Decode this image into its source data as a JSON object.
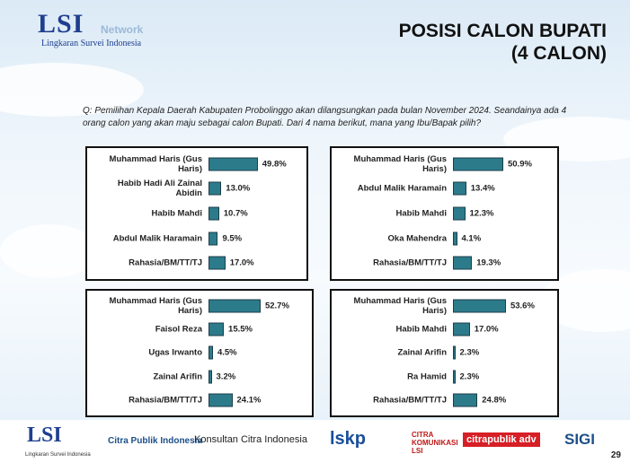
{
  "header": {
    "logo": "LSI",
    "network": "Network",
    "logo_subtitle": "Lingkaran Survei Indonesia",
    "title": "POSISI CALON BUPATI",
    "subtitle": "(4 CALON)"
  },
  "question": "Q:  Pemilihan Kepala Daerah Kabupaten Probolinggo akan dilangsungkan pada bulan November 2024. Seandainya ada 4 orang calon yang akan maju sebagai calon Bupati. Dari 4 nama berikut, mana yang Ibu/Bapak pilih?",
  "chart_data": [
    {
      "type": "bar",
      "orientation": "horizontal",
      "color": "#2c7b8b",
      "categories": [
        "Muhammad Haris (Gus Haris)",
        "Habib Hadi Ali Zainal Abidin",
        "Habib Mahdi",
        "Abdul Malik Haramain",
        "Rahasia/BM/TT/TJ"
      ],
      "values": [
        49.8,
        13.0,
        10.7,
        9.5,
        17.0
      ],
      "value_labels": [
        "49.8%",
        "13.0%",
        "10.7%",
        "9.5%",
        "17.0%"
      ]
    },
    {
      "type": "bar",
      "orientation": "horizontal",
      "color": "#2c7b8b",
      "categories": [
        "Muhammad Haris (Gus Haris)",
        "Abdul Malik Haramain",
        "Habib Mahdi",
        "Oka Mahendra",
        "Rahasia/BM/TT/TJ"
      ],
      "values": [
        50.9,
        13.4,
        12.3,
        4.1,
        19.3
      ],
      "value_labels": [
        "50.9%",
        "13.4%",
        "12.3%",
        "4.1%",
        "19.3%"
      ]
    },
    {
      "type": "bar",
      "orientation": "horizontal",
      "color": "#2c7b8b",
      "categories": [
        "Muhammad Haris (Gus Haris)",
        "Faisol Reza",
        "Ugas Irwanto",
        "Zainal Arifin",
        "Rahasia/BM/TT/TJ"
      ],
      "values": [
        52.7,
        15.5,
        4.5,
        3.2,
        24.1
      ],
      "value_labels": [
        "52.7%",
        "15.5%",
        "4.5%",
        "3.2%",
        "24.1%"
      ]
    },
    {
      "type": "bar",
      "orientation": "horizontal",
      "color": "#2c7b8b",
      "categories": [
        "Muhammad Haris (Gus Haris)",
        "Habib Mahdi",
        "Zainal Arifin",
        "Ra Hamid",
        "Rahasia/BM/TT/TJ"
      ],
      "values": [
        53.6,
        17.0,
        2.3,
        2.3,
        24.8
      ],
      "value_labels": [
        "53.6%",
        "17.0%",
        "2.3%",
        "2.3%",
        "24.8%"
      ]
    }
  ],
  "footer": {
    "logos": [
      "LSI",
      "Lingkaran Survei Indonesia",
      "Citra Publik Indonesia",
      "Konsultan Citra Indonesia",
      "lskp",
      "CITRA KOMUNIKASI LSI",
      "citrapublik adv",
      "SIGI"
    ],
    "page": "29"
  }
}
